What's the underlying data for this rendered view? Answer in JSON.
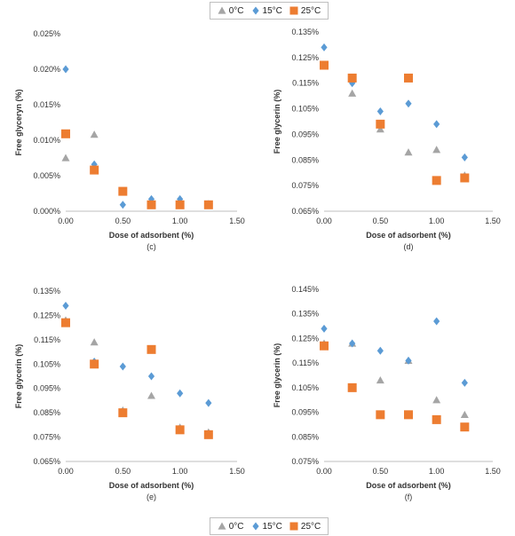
{
  "legend": {
    "entries": [
      {
        "label": "0°C",
        "marker": "triangle",
        "color": "#a5a5a5"
      },
      {
        "label": "15°C",
        "marker": "diamond",
        "color": "#5b9bd5"
      },
      {
        "label": "25°C",
        "marker": "square",
        "color": "#ed7d31"
      }
    ]
  },
  "chart_data": [
    {
      "panel": "(c)",
      "type": "scatter",
      "xlabel": "Dose of adsorbent (%)",
      "ylabel": "Free glyceryn (%)",
      "xlim": [
        0,
        1.5
      ],
      "xticks": [
        "0.00",
        "0.50",
        "1.00",
        "1.50"
      ],
      "ylim": [
        0,
        0.025
      ],
      "yticks": [
        "0.000%",
        "0.005%",
        "0.010%",
        "0.015%",
        "0.020%",
        "0.025%"
      ],
      "series": [
        {
          "name": "0°C",
          "x": [
            0,
            0.25,
            0.5,
            0.75,
            1.0,
            1.25
          ],
          "y": [
            0.0075,
            0.0108,
            0.0027,
            0.0012,
            0.001,
            0.001
          ]
        },
        {
          "name": "15°C",
          "x": [
            0,
            0.25,
            0.5,
            0.75,
            1.0,
            1.25
          ],
          "y": [
            0.02,
            0.0066,
            0.0009,
            0.0017,
            0.0017,
            0.001
          ]
        },
        {
          "name": "25°C",
          "x": [
            0,
            0.25,
            0.5,
            0.75,
            1.0,
            1.25
          ],
          "y": [
            0.0109,
            0.0058,
            0.0028,
            0.0009,
            0.0009,
            0.0009
          ]
        }
      ]
    },
    {
      "panel": "(d)",
      "type": "scatter",
      "xlabel": "Dose of adsorbent (%)",
      "ylabel": "Free glycerin (%)",
      "xlim": [
        0,
        1.5
      ],
      "xticks": [
        "0.00",
        "0.50",
        "1.00",
        "1.50"
      ],
      "ylim": [
        0.065,
        0.135
      ],
      "yticks": [
        "0.065%",
        "0.075%",
        "0.085%",
        "0.095%",
        "0.105%",
        "0.115%",
        "0.125%",
        "0.135%"
      ],
      "series": [
        {
          "name": "0°C",
          "x": [
            0,
            0.25,
            0.5,
            0.75,
            1.0,
            1.25
          ],
          "y": [
            0.122,
            0.111,
            0.097,
            0.088,
            0.089,
            0.079
          ]
        },
        {
          "name": "15°C",
          "x": [
            0,
            0.25,
            0.5,
            0.75,
            1.0,
            1.25
          ],
          "y": [
            0.129,
            0.115,
            0.104,
            0.107,
            0.099,
            0.086
          ]
        },
        {
          "name": "25°C",
          "x": [
            0,
            0.25,
            0.5,
            0.75,
            1.0,
            1.25
          ],
          "y": [
            0.122,
            0.117,
            0.099,
            0.117,
            0.077,
            0.078
          ]
        }
      ]
    },
    {
      "panel": "(e)",
      "type": "scatter",
      "xlabel": "Dose of adsorbent (%)",
      "ylabel": "Free glycerin (%)",
      "xlim": [
        0,
        1.5
      ],
      "xticks": [
        "0.00",
        "0.50",
        "1.00",
        "1.50"
      ],
      "ylim": [
        0.065,
        0.135
      ],
      "yticks": [
        "0.065%",
        "0.075%",
        "0.085%",
        "0.095%",
        "0.105%",
        "0.115%",
        "0.125%",
        "0.135%"
      ],
      "series": [
        {
          "name": "0°C",
          "x": [
            0,
            0.25,
            0.5,
            0.75,
            1.0,
            1.25
          ],
          "y": [
            0.123,
            0.114,
            0.086,
            0.092,
            0.079,
            0.077
          ]
        },
        {
          "name": "15°C",
          "x": [
            0,
            0.25,
            0.5,
            0.75,
            1.0,
            1.25
          ],
          "y": [
            0.129,
            0.106,
            0.104,
            0.1,
            0.093,
            0.089
          ]
        },
        {
          "name": "25°C",
          "x": [
            0,
            0.25,
            0.5,
            0.75,
            1.0,
            1.25
          ],
          "y": [
            0.122,
            0.105,
            0.085,
            0.111,
            0.078,
            0.076
          ]
        }
      ]
    },
    {
      "panel": "(f)",
      "type": "scatter",
      "xlabel": "Dose of adsorbent (%)",
      "ylabel": "Free glycerin (%)",
      "xlim": [
        0,
        1.5
      ],
      "xticks": [
        "0.00",
        "0.50",
        "1.00",
        "1.50"
      ],
      "ylim": [
        0.075,
        0.145
      ],
      "yticks": [
        "0.075%",
        "0.085%",
        "0.095%",
        "0.105%",
        "0.115%",
        "0.125%",
        "0.135%",
        "0.145%"
      ],
      "series": [
        {
          "name": "0°C",
          "x": [
            0,
            0.25,
            0.5,
            0.75,
            1.0,
            1.25
          ],
          "y": [
            0.123,
            0.123,
            0.108,
            0.116,
            0.1,
            0.094
          ]
        },
        {
          "name": "15°C",
          "x": [
            0,
            0.25,
            0.5,
            0.75,
            1.0,
            1.25
          ],
          "y": [
            0.129,
            0.123,
            0.12,
            0.116,
            0.132,
            0.107
          ]
        },
        {
          "name": "25°C",
          "x": [
            0,
            0.25,
            0.5,
            0.75,
            1.0,
            1.25
          ],
          "y": [
            0.122,
            0.105,
            0.094,
            0.094,
            0.092,
            0.089
          ]
        }
      ]
    }
  ]
}
